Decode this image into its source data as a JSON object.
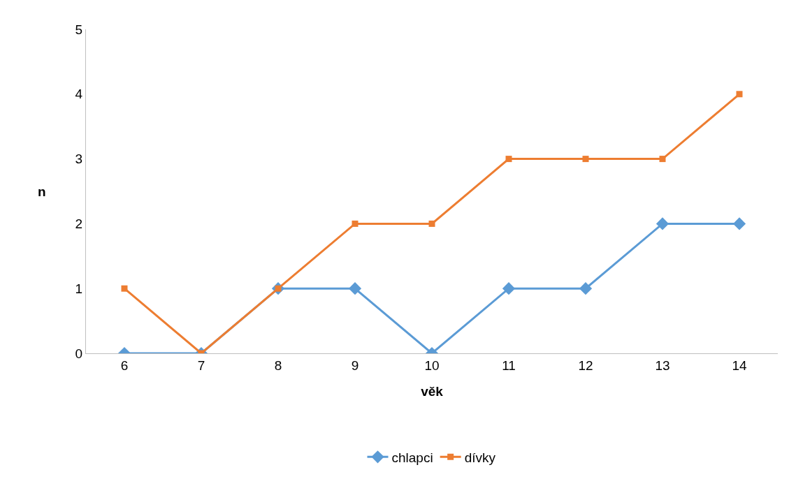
{
  "chart_data": {
    "type": "line",
    "xlabel": "věk",
    "ylabel": "n",
    "categories": [
      "6",
      "7",
      "8",
      "9",
      "10",
      "11",
      "12",
      "13",
      "14"
    ],
    "series": [
      {
        "name": "chlapci",
        "color": "#5b9bd5",
        "marker": "diamond",
        "values": [
          0,
          0,
          1,
          1,
          0,
          1,
          1,
          2,
          2
        ]
      },
      {
        "name": "dívky",
        "color": "#ed7d31",
        "marker": "square",
        "values": [
          1,
          0,
          1,
          2,
          2,
          3,
          3,
          3,
          4
        ]
      }
    ],
    "ylim": [
      0,
      5
    ],
    "yticks": [
      0,
      1,
      2,
      3,
      4,
      5
    ],
    "grid": false,
    "legend": "bottom",
    "line_style": "solid"
  }
}
